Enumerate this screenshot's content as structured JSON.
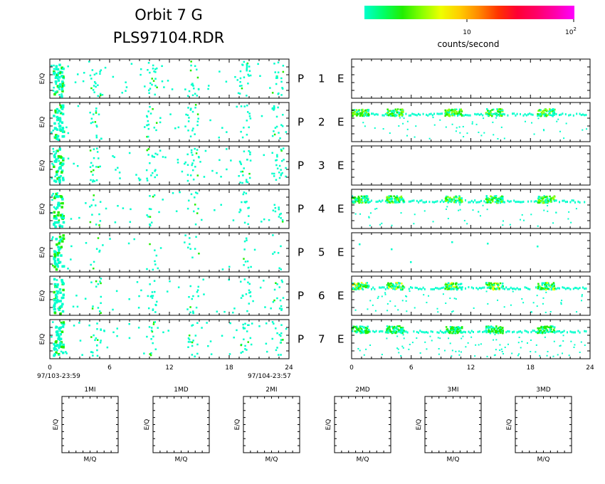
{
  "header": {
    "title_line1": "Orbit 7 G",
    "title_line2": "PLS97104.RDR"
  },
  "colorbar": {
    "label": "counts/second",
    "tick_10": "10",
    "tick_100_base": "10",
    "tick_100_exp": "2",
    "colors": [
      "#00ffcc",
      "#00ff66",
      "#22ee00",
      "#88ff00",
      "#eeff00",
      "#ffcc00",
      "#ff8800",
      "#ff3300",
      "#ff0033",
      "#ff0066",
      "#ff00aa",
      "#ff00ff"
    ]
  },
  "time_axis": {
    "ticks": [
      "0",
      "6",
      "12",
      "18",
      "24"
    ],
    "start_label": "97/103-23:59",
    "end_label": "97/104-23:57"
  },
  "rows": [
    {
      "p": "P",
      "num": "1",
      "e": "E"
    },
    {
      "p": "P",
      "num": "2",
      "e": "E"
    },
    {
      "p": "P",
      "num": "3",
      "e": "E"
    },
    {
      "p": "P",
      "num": "4",
      "e": "E"
    },
    {
      "p": "P",
      "num": "5",
      "e": "E"
    },
    {
      "p": "P",
      "num": "6",
      "e": "E"
    },
    {
      "p": "P",
      "num": "7",
      "e": "E"
    }
  ],
  "ylabel": "E/Q",
  "mq_panels": [
    {
      "title": "1MI",
      "ylabel": "E/Q",
      "xlabel": "M/Q"
    },
    {
      "title": "1MD",
      "ylabel": "E/Q",
      "xlabel": "M/Q"
    },
    {
      "title": "2MI",
      "ylabel": "E/Q",
      "xlabel": "M/Q"
    },
    {
      "title": "2MD",
      "ylabel": "E/Q",
      "xlabel": "M/Q"
    },
    {
      "title": "3MI",
      "ylabel": "E/Q",
      "xlabel": "M/Q"
    },
    {
      "title": "3MD",
      "ylabel": "E/Q",
      "xlabel": "M/Q"
    }
  ],
  "chart_data": {
    "type": "heatmap",
    "x_range": [
      0,
      24
    ],
    "colorscale": "log",
    "colorbar_range": [
      1,
      100
    ],
    "left_column": {
      "activity_hours": [
        0.5,
        4.5,
        10.2,
        14.3,
        19.5,
        22.8
      ],
      "rows": [
        {
          "panel": "1",
          "density": 0.1
        },
        {
          "panel": "2",
          "density": 0.07
        },
        {
          "panel": "3",
          "density": 0.1
        },
        {
          "panel": "4",
          "density": 0.06
        },
        {
          "panel": "5",
          "density": 0.04
        },
        {
          "panel": "6",
          "density": 0.07
        },
        {
          "panel": "7",
          "density": 0.09
        }
      ]
    },
    "right_column": {
      "band_hours": [
        0.8,
        4.3,
        10.2,
        14.3,
        19.5
      ],
      "rows": [
        {
          "panel": "1",
          "band": false
        },
        {
          "panel": "2",
          "band": true,
          "band_level": "medium"
        },
        {
          "panel": "3",
          "band": false
        },
        {
          "panel": "4",
          "band": true,
          "band_level": "medium"
        },
        {
          "panel": "5",
          "band": false
        },
        {
          "panel": "6",
          "band": true,
          "band_level": "high"
        },
        {
          "panel": "7",
          "band": true,
          "band_level": "low"
        }
      ]
    }
  }
}
